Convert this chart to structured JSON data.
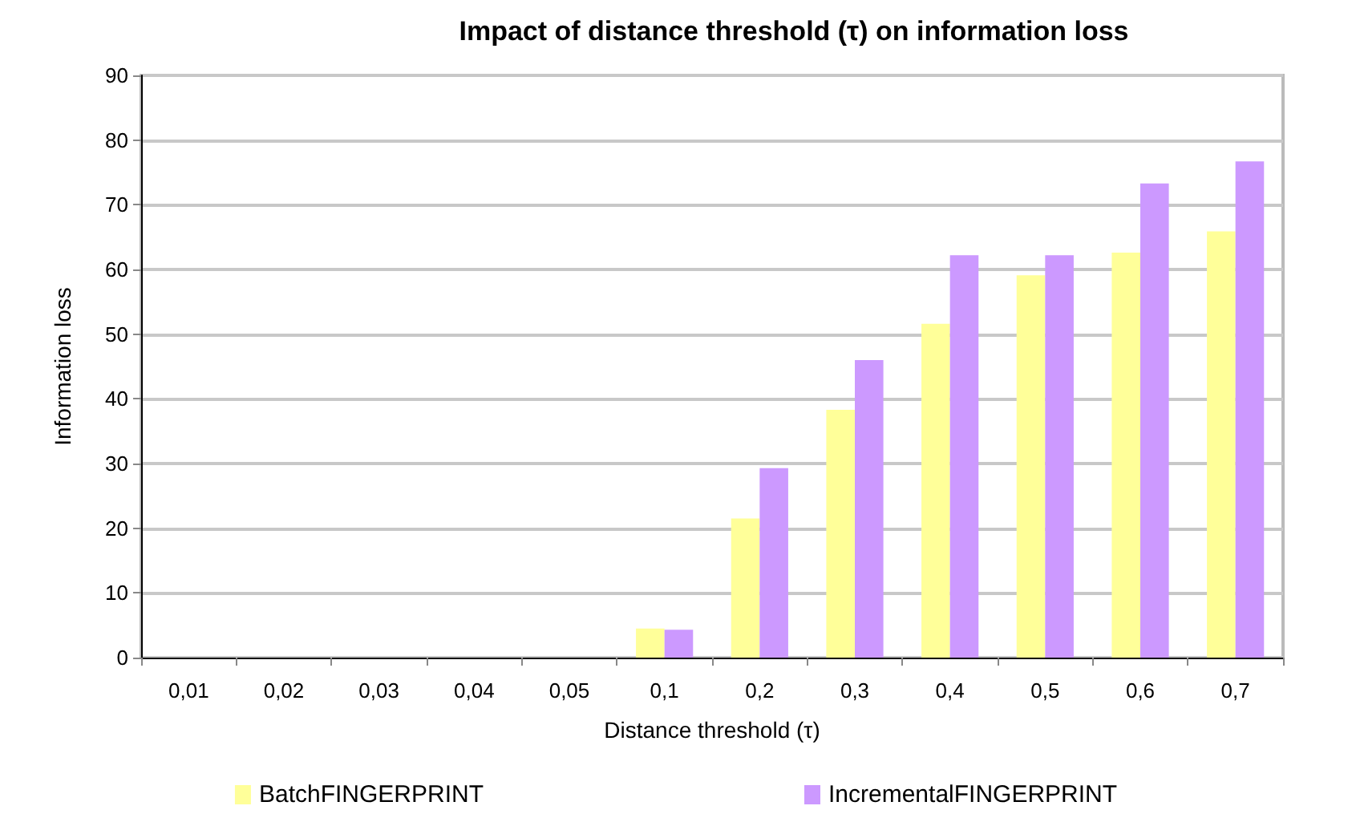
{
  "chart_data": {
    "type": "bar",
    "title": "Impact of distance threshold (τ) on information loss",
    "xlabel": "Distance threshold (τ)",
    "ylabel": "Information loss",
    "categories": [
      "0,01",
      "0,02",
      "0,03",
      "0,04",
      "0,05",
      "0,1",
      "0,2",
      "0,3",
      "0,4",
      "0,5",
      "0,6",
      "0,7"
    ],
    "series": [
      {
        "name": "BatchFINGERPRINT",
        "color": "#ffff99",
        "values": [
          0,
          0,
          0,
          0,
          0,
          4.5,
          21.5,
          38.3,
          51.6,
          59.1,
          62.6,
          65.9
        ]
      },
      {
        "name": "IncrementalFINGERPRINT",
        "color": "#cc99ff",
        "values": [
          0,
          0,
          0,
          0,
          0,
          4.3,
          29.3,
          46,
          62.2,
          62.2,
          73.3,
          76.7
        ]
      }
    ],
    "ylim": [
      0,
      90
    ],
    "yticks": [
      0,
      10,
      20,
      30,
      40,
      50,
      60,
      70,
      80,
      90
    ],
    "grid": "y",
    "legend": "bottom"
  }
}
